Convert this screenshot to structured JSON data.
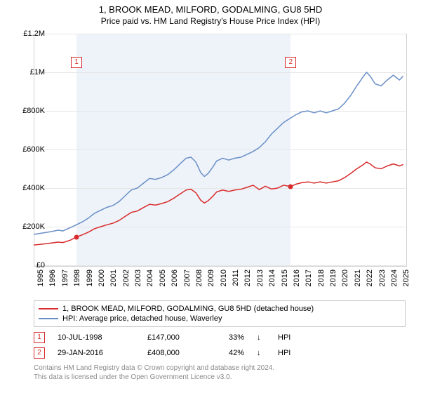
{
  "title": "1, BROOK MEAD, MILFORD, GODALMING, GU8 5HD",
  "subtitle": "Price paid vs. HM Land Registry's House Price Index (HPI)",
  "chart": {
    "type": "line",
    "background_color": "#ffffff",
    "grid_color": "#e6e6e6",
    "border_color": "#d0d0d0",
    "shade_color": "#eef3fa",
    "x_domain": [
      1995,
      2025.5
    ],
    "y_domain": [
      0,
      1200000
    ],
    "y_ticks": [
      {
        "v": 0,
        "label": "£0"
      },
      {
        "v": 200000,
        "label": "£200K"
      },
      {
        "v": 400000,
        "label": "£400K"
      },
      {
        "v": 600000,
        "label": "£600K"
      },
      {
        "v": 800000,
        "label": "£800K"
      },
      {
        "v": 1000000,
        "label": "£1M"
      },
      {
        "v": 1200000,
        "label": "£1.2M"
      }
    ],
    "x_ticks": [
      1995,
      1996,
      1997,
      1998,
      1999,
      2000,
      2001,
      2002,
      2003,
      2004,
      2005,
      2006,
      2007,
      2008,
      2009,
      2010,
      2011,
      2012,
      2013,
      2014,
      2015,
      2016,
      2017,
      2018,
      2019,
      2020,
      2021,
      2022,
      2023,
      2024,
      2025
    ],
    "shade_range": [
      1998.52,
      2016.08
    ],
    "series": [
      {
        "name": "hpi",
        "color": "#6a8fc7",
        "width": 1.5,
        "label": "HPI: Average price, detached house, Waverley",
        "points": [
          [
            1995,
            160000
          ],
          [
            1995.5,
            165000
          ],
          [
            1996,
            170000
          ],
          [
            1996.5,
            175000
          ],
          [
            1997,
            182000
          ],
          [
            1997.4,
            178000
          ],
          [
            1997.8,
            190000
          ],
          [
            1998,
            195000
          ],
          [
            1998.5,
            210000
          ],
          [
            1999,
            225000
          ],
          [
            1999.5,
            245000
          ],
          [
            2000,
            270000
          ],
          [
            2000.5,
            285000
          ],
          [
            2001,
            300000
          ],
          [
            2001.5,
            310000
          ],
          [
            2002,
            330000
          ],
          [
            2002.5,
            360000
          ],
          [
            2003,
            390000
          ],
          [
            2003.5,
            400000
          ],
          [
            2004,
            425000
          ],
          [
            2004.5,
            450000
          ],
          [
            2005,
            445000
          ],
          [
            2005.5,
            455000
          ],
          [
            2006,
            470000
          ],
          [
            2006.5,
            495000
          ],
          [
            2007,
            525000
          ],
          [
            2007.5,
            555000
          ],
          [
            2007.9,
            560000
          ],
          [
            2008.3,
            535000
          ],
          [
            2008.7,
            480000
          ],
          [
            2009,
            460000
          ],
          [
            2009.3,
            475000
          ],
          [
            2009.7,
            510000
          ],
          [
            2010,
            540000
          ],
          [
            2010.5,
            555000
          ],
          [
            2011,
            545000
          ],
          [
            2011.5,
            555000
          ],
          [
            2012,
            560000
          ],
          [
            2012.5,
            575000
          ],
          [
            2013,
            590000
          ],
          [
            2013.5,
            610000
          ],
          [
            2014,
            640000
          ],
          [
            2014.5,
            680000
          ],
          [
            2015,
            710000
          ],
          [
            2015.5,
            740000
          ],
          [
            2016,
            760000
          ],
          [
            2016.5,
            780000
          ],
          [
            2017,
            795000
          ],
          [
            2017.5,
            800000
          ],
          [
            2018,
            790000
          ],
          [
            2018.5,
            800000
          ],
          [
            2019,
            790000
          ],
          [
            2019.5,
            800000
          ],
          [
            2020,
            810000
          ],
          [
            2020.5,
            840000
          ],
          [
            2021,
            880000
          ],
          [
            2021.5,
            930000
          ],
          [
            2022,
            975000
          ],
          [
            2022.3,
            1000000
          ],
          [
            2022.6,
            980000
          ],
          [
            2023,
            940000
          ],
          [
            2023.5,
            930000
          ],
          [
            2024,
            960000
          ],
          [
            2024.5,
            985000
          ],
          [
            2025,
            960000
          ],
          [
            2025.3,
            980000
          ]
        ]
      },
      {
        "name": "property",
        "color": "#d92b2b",
        "width": 1.5,
        "label": "1, BROOK MEAD, MILFORD, GODALMING, GU8 5HD (detached house)",
        "points": [
          [
            1995,
            105000
          ],
          [
            1995.5,
            108000
          ],
          [
            1996,
            112000
          ],
          [
            1996.5,
            116000
          ],
          [
            1997,
            120000
          ],
          [
            1997.4,
            118000
          ],
          [
            1997.8,
            126000
          ],
          [
            1998,
            130000
          ],
          [
            1998.52,
            147000
          ],
          [
            1999,
            158000
          ],
          [
            1999.5,
            172000
          ],
          [
            2000,
            190000
          ],
          [
            2000.5,
            200000
          ],
          [
            2001,
            210000
          ],
          [
            2001.5,
            218000
          ],
          [
            2002,
            232000
          ],
          [
            2002.5,
            253000
          ],
          [
            2003,
            274000
          ],
          [
            2003.5,
            281000
          ],
          [
            2004,
            299000
          ],
          [
            2004.5,
            316000
          ],
          [
            2005,
            312000
          ],
          [
            2005.5,
            320000
          ],
          [
            2006,
            330000
          ],
          [
            2006.5,
            348000
          ],
          [
            2007,
            369000
          ],
          [
            2007.5,
            390000
          ],
          [
            2007.9,
            394000
          ],
          [
            2008.3,
            376000
          ],
          [
            2008.7,
            337000
          ],
          [
            2009,
            323000
          ],
          [
            2009.3,
            334000
          ],
          [
            2009.7,
            358000
          ],
          [
            2010,
            380000
          ],
          [
            2010.5,
            390000
          ],
          [
            2011,
            383000
          ],
          [
            2011.5,
            390000
          ],
          [
            2012,
            394000
          ],
          [
            2012.5,
            404000
          ],
          [
            2013,
            415000
          ],
          [
            2013.5,
            392000
          ],
          [
            2014,
            410000
          ],
          [
            2014.5,
            395000
          ],
          [
            2015,
            400000
          ],
          [
            2015.5,
            415000
          ],
          [
            2016.08,
            408000
          ],
          [
            2016.5,
            420000
          ],
          [
            2017,
            428000
          ],
          [
            2017.5,
            432000
          ],
          [
            2018,
            426000
          ],
          [
            2018.5,
            432000
          ],
          [
            2019,
            426000
          ],
          [
            2019.5,
            432000
          ],
          [
            2020,
            438000
          ],
          [
            2020.5,
            454000
          ],
          [
            2021,
            476000
          ],
          [
            2021.5,
            500000
          ],
          [
            2022,
            520000
          ],
          [
            2022.3,
            535000
          ],
          [
            2022.6,
            525000
          ],
          [
            2023,
            505000
          ],
          [
            2023.5,
            500000
          ],
          [
            2024,
            515000
          ],
          [
            2024.5,
            525000
          ],
          [
            2025,
            515000
          ],
          [
            2025.3,
            522000
          ]
        ]
      }
    ],
    "markers": [
      {
        "id": "1",
        "x": 1998.52,
        "y_marker_top": 1050000,
        "y_dot": 147000,
        "color": "#d92b2b"
      },
      {
        "id": "2",
        "x": 2016.08,
        "y_marker_top": 1050000,
        "y_dot": 408000,
        "color": "#d92b2b"
      }
    ]
  },
  "legend": {
    "items": [
      {
        "color": "#d92b2b",
        "label": "1, BROOK MEAD, MILFORD, GODALMING, GU8 5HD (detached house)"
      },
      {
        "color": "#6a8fc7",
        "label": "HPI: Average price, detached house, Waverley"
      }
    ]
  },
  "sales": [
    {
      "marker": "1",
      "color": "#d92b2b",
      "date": "10-JUL-1998",
      "price": "£147,000",
      "pct": "33%",
      "arrow": "↓",
      "hpi_label": "HPI"
    },
    {
      "marker": "2",
      "color": "#d92b2b",
      "date": "29-JAN-2016",
      "price": "£408,000",
      "pct": "42%",
      "arrow": "↓",
      "hpi_label": "HPI"
    }
  ],
  "footer": {
    "line1": "Contains HM Land Registry data © Crown copyright and database right 2024.",
    "line2": "This data is licensed under the Open Government Licence v3.0."
  },
  "styling": {
    "title_fontsize": 13,
    "subtitle_fontsize": 12,
    "tick_fontsize": 11,
    "legend_fontsize": 11,
    "footer_fontsize": 10,
    "footer_color": "#8a8a8a"
  }
}
